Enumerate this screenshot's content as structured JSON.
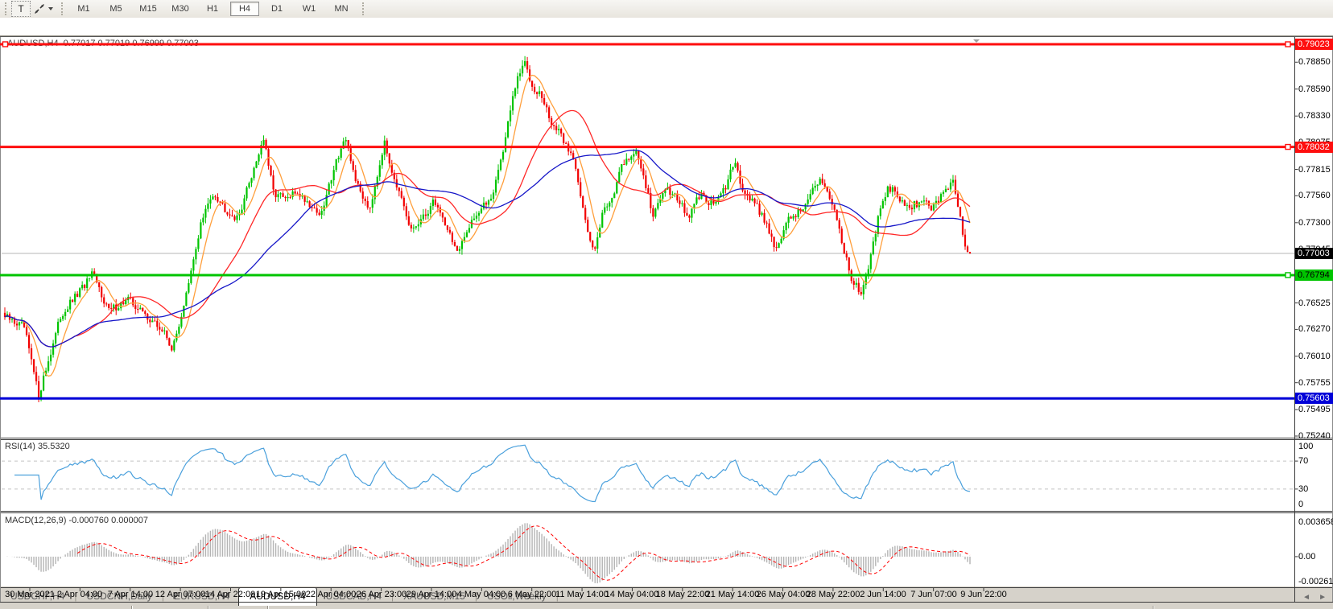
{
  "toolbar": {
    "text_tool_label": "T",
    "timeframes": [
      "M1",
      "M5",
      "M15",
      "M30",
      "H1",
      "H4",
      "D1",
      "W1",
      "MN"
    ],
    "active_timeframe": "H4"
  },
  "chart": {
    "title": "AUDUSD,H4  0.77017 0.77019 0.76999 0.77003",
    "symbol": "AUDUSD",
    "period": "H4",
    "ohlc_readout": {
      "open": "0.77017",
      "high": "0.77019",
      "low": "0.76999",
      "close": "0.77003"
    },
    "price_axis_labels": [
      "0.78850",
      "0.78590",
      "0.78330",
      "0.78075",
      "0.77815",
      "0.77560",
      "0.77300",
      "0.77045",
      "0.76785",
      "0.76525",
      "0.76270",
      "0.76010",
      "0.75755",
      "0.75495",
      "0.75240"
    ],
    "current_price": {
      "label": "0.77003",
      "price": 0.77003,
      "line_color": "#b4b4b4",
      "badge_color": "#000000"
    },
    "levels": [
      {
        "label": "0.79023",
        "price": 0.79023,
        "color": "#fe0e0e",
        "thickness": 3,
        "text_color": "#ffffff",
        "handle_left": true,
        "handle_right": true
      },
      {
        "label": "0.78032",
        "price": 0.78032,
        "color": "#fe0e0e",
        "thickness": 3,
        "text_color": "#ffffff",
        "handle_left": false,
        "handle_right": true
      },
      {
        "label": "0.76794",
        "price": 0.76794,
        "color": "#00c400",
        "thickness": 3,
        "text_color": "#000000",
        "handle_left": false,
        "handle_right": true
      },
      {
        "label": "0.75603",
        "price": 0.75603,
        "color": "#0000d8",
        "thickness": 3,
        "text_color": "#ffffff",
        "handle_left": false,
        "handle_right": false
      }
    ],
    "time_axis_labels": [
      "30 Mar 2021",
      "2 Apr 04:00",
      "7 Apr 14:00",
      "12 Apr 07:00",
      "14 Apr 22:00",
      "19 Apr 15:00",
      "22 Apr 04:00",
      "26 Apr 23:00",
      "29 Apr 14:00",
      "4 May 04:00",
      "6 May 22:00",
      "11 May 14:00",
      "14 May 04:00",
      "18 May 22:00",
      "21 May 14:00",
      "26 May 04:00",
      "28 May 22:00",
      "2 Jun 14:00",
      "7 Jun 07:00",
      "9 Jun 22:00"
    ]
  },
  "chart_data": {
    "type": "candlestick",
    "symbol": "AUDUSD",
    "timeframe": "H4",
    "visible_price_range": [
      0.7524,
      0.7908
    ],
    "last_candle": {
      "open": 0.77017,
      "high": 0.77019,
      "low": 0.76999,
      "close": 0.77003
    },
    "price_path": [
      [
        0.0,
        0.7639
      ],
      [
        0.02,
        0.7629
      ],
      [
        0.035,
        0.7563
      ],
      [
        0.058,
        0.764
      ],
      [
        0.078,
        0.7664
      ],
      [
        0.091,
        0.768
      ],
      [
        0.108,
        0.7645
      ],
      [
        0.128,
        0.7656
      ],
      [
        0.149,
        0.7638
      ],
      [
        0.166,
        0.7623
      ],
      [
        0.174,
        0.7607
      ],
      [
        0.191,
        0.7672
      ],
      [
        0.203,
        0.7729
      ],
      [
        0.216,
        0.776
      ],
      [
        0.228,
        0.7744
      ],
      [
        0.241,
        0.7733
      ],
      [
        0.253,
        0.7768
      ],
      [
        0.268,
        0.7812
      ],
      [
        0.278,
        0.776
      ],
      [
        0.291,
        0.7752
      ],
      [
        0.303,
        0.776
      ],
      [
        0.316,
        0.7748
      ],
      [
        0.328,
        0.7737
      ],
      [
        0.341,
        0.7784
      ],
      [
        0.352,
        0.7811
      ],
      [
        0.366,
        0.7764
      ],
      [
        0.378,
        0.7744
      ],
      [
        0.393,
        0.7807
      ],
      [
        0.408,
        0.776
      ],
      [
        0.42,
        0.7722
      ],
      [
        0.433,
        0.7733
      ],
      [
        0.445,
        0.7752
      ],
      [
        0.458,
        0.7726
      ],
      [
        0.47,
        0.7699
      ],
      [
        0.483,
        0.7733
      ],
      [
        0.495,
        0.7744
      ],
      [
        0.505,
        0.7757
      ],
      [
        0.516,
        0.7799
      ],
      [
        0.528,
        0.78585
      ],
      [
        0.538,
        0.7886
      ],
      [
        0.547,
        0.7862
      ],
      [
        0.555,
        0.7854
      ],
      [
        0.566,
        0.7827
      ],
      [
        0.578,
        0.78114
      ],
      [
        0.591,
        0.7788
      ],
      [
        0.603,
        0.7722
      ],
      [
        0.61,
        0.7703
      ],
      [
        0.62,
        0.77415
      ],
      [
        0.63,
        0.7757
      ],
      [
        0.641,
        0.7788
      ],
      [
        0.653,
        0.7799
      ],
      [
        0.662,
        0.7776
      ],
      [
        0.672,
        0.7734
      ],
      [
        0.683,
        0.7765
      ],
      [
        0.695,
        0.7757
      ],
      [
        0.708,
        0.7734
      ],
      [
        0.72,
        0.7757
      ],
      [
        0.733,
        0.7748
      ],
      [
        0.745,
        0.776
      ],
      [
        0.756,
        0.7788
      ],
      [
        0.766,
        0.776
      ],
      [
        0.778,
        0.7748
      ],
      [
        0.791,
        0.7726
      ],
      [
        0.799,
        0.7703
      ],
      [
        0.812,
        0.7733
      ],
      [
        0.824,
        0.77415
      ],
      [
        0.837,
        0.776
      ],
      [
        0.847,
        0.7772
      ],
      [
        0.858,
        0.7749
      ],
      [
        0.868,
        0.771
      ],
      [
        0.878,
        0.7672
      ],
      [
        0.887,
        0.7664
      ],
      [
        0.897,
        0.7695
      ],
      [
        0.905,
        0.7734
      ],
      [
        0.916,
        0.7765
      ],
      [
        0.927,
        0.7752
      ],
      [
        0.938,
        0.7744
      ],
      [
        0.949,
        0.7752
      ],
      [
        0.96,
        0.7744
      ],
      [
        0.972,
        0.7757
      ],
      [
        0.982,
        0.7772
      ],
      [
        0.991,
        0.7729
      ],
      [
        0.997,
        0.7701
      ],
      [
        1.0,
        0.77003
      ]
    ],
    "candle_up_color": "#00c400",
    "candle_down_color": "#f20000",
    "moving_averages": [
      {
        "name": "fast",
        "period": 8,
        "color": "#ff9f3c"
      },
      {
        "name": "medium",
        "period": 30,
        "color": "#ff2828"
      },
      {
        "name": "slow",
        "period": 55,
        "color": "#1616c8"
      }
    ]
  },
  "rsi": {
    "label": "RSI(14) 35.5320",
    "period": 14,
    "value": 35.532,
    "color": "#4aa0dc",
    "scale_labels": [
      "100",
      "70",
      "30",
      "0"
    ],
    "level_lines": [
      70,
      30
    ]
  },
  "macd": {
    "label": "MACD(12,26,9) -0.000760 0.000007",
    "main_value": -0.00076,
    "signal_value": 7e-06,
    "histogram_color": "#b4b4b4",
    "signal_color": "#ff0000",
    "scale_labels": [
      "0.003658",
      "0.00",
      "-0.002613"
    ],
    "scale_max": 0.003658,
    "scale_min": -0.002613
  },
  "tabbar": {
    "tabs": [
      "USDCHF,H4",
      "USDCNH,Daily",
      "EURUSD,H4",
      "AUDUSD,H4",
      "USDCAD,H4",
      "XAUUSD,M15",
      "USOil,Weekly"
    ],
    "active": "AUDUSD,H4",
    "left_arrow": "◄",
    "right_arrow": "►"
  }
}
